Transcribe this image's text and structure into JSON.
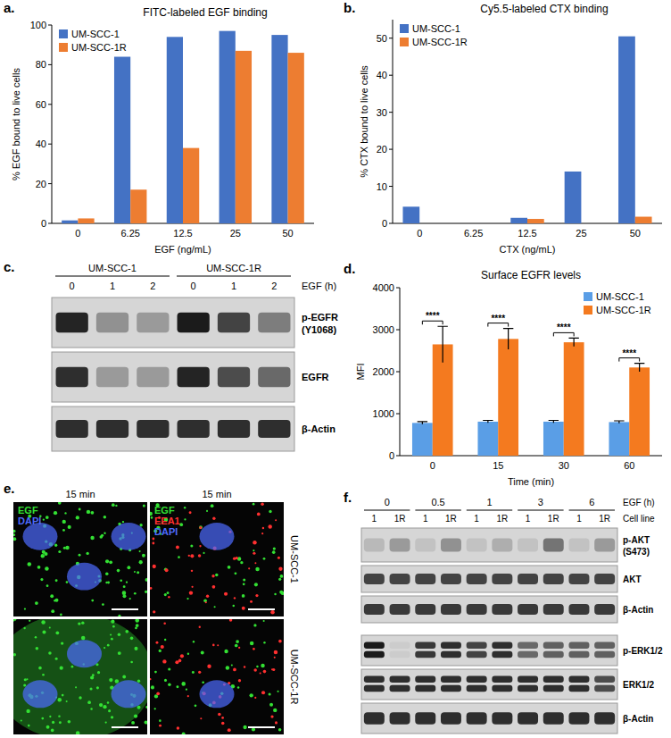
{
  "chart_data": [
    {
      "type": "bar",
      "panel": "a.",
      "title": "FITC-labeled EGF binding",
      "x_label": "EGF (ng/mL)",
      "y_label": "% EGF bound to live cells",
      "categories": [
        "0",
        "6.25",
        "12.5",
        "25",
        "50"
      ],
      "series": [
        {
          "name": "UM-SCC-1",
          "color": "#4472c4",
          "values": [
            1.5,
            84,
            94,
            97,
            95
          ]
        },
        {
          "name": "UM-SCC-1R",
          "color": "#ed7d31",
          "values": [
            2.5,
            17,
            38,
            87,
            86
          ]
        }
      ],
      "ylim": [
        0,
        100
      ],
      "yticks": [
        0,
        20,
        40,
        60,
        80,
        100
      ],
      "grid": false,
      "legend": "upper left"
    },
    {
      "type": "bar",
      "panel": "b.",
      "title": "Cy5.5-labeled CTX binding",
      "x_label": "CTX (ng/mL)",
      "y_label": "% CTX bound to live cells",
      "categories": [
        "0",
        "6.25",
        "12.5",
        "25",
        "50"
      ],
      "series": [
        {
          "name": "UM-SCC-1",
          "color": "#4472c4",
          "values": [
            4.5,
            0,
            1.5,
            14,
            50.5
          ]
        },
        {
          "name": "UM-SCC-1R",
          "color": "#ed7d31",
          "values": [
            0,
            0,
            1.2,
            0,
            1.8
          ]
        }
      ],
      "ylim": [
        0,
        55
      ],
      "yticks": [
        0,
        10,
        20,
        30,
        40,
        50
      ],
      "grid": false,
      "legend": "upper left"
    },
    {
      "type": "bar",
      "panel": "d.",
      "title": "Surface EGFR levels",
      "x_label": "Time (min)",
      "y_label": "MFI",
      "categories": [
        "0",
        "15",
        "30",
        "60"
      ],
      "series": [
        {
          "name": "UM-SCC-1",
          "color": "#5a9ee6",
          "values": [
            780,
            810,
            810,
            800
          ],
          "errors": [
            30,
            30,
            30,
            30
          ]
        },
        {
          "name": "UM-SCC-1R",
          "color": "#f47a1f",
          "values": [
            2650,
            2780,
            2700,
            2100
          ],
          "errors": [
            430,
            250,
            100,
            100
          ]
        }
      ],
      "annotations": [
        "****",
        "****",
        "****",
        "****"
      ],
      "ylim": [
        0,
        4000
      ],
      "yticks": [
        0,
        1000,
        2000,
        3000,
        4000
      ],
      "grid": false,
      "legend": "upper right"
    }
  ],
  "blot_c": {
    "panel": "c.",
    "groups": [
      "UM-SCC-1",
      "UM-SCC-1R"
    ],
    "lanes": [
      "0",
      "1",
      "2",
      "0",
      "1",
      "2"
    ],
    "lanes_label": "EGF (h)",
    "rows": [
      {
        "label": "p-EGFR",
        "sublabel": "(Y1068)",
        "intensity": [
          0.9,
          0.35,
          0.3,
          0.95,
          0.75,
          0.45
        ]
      },
      {
        "label": "EGFR",
        "intensity": [
          0.85,
          0.3,
          0.3,
          0.9,
          0.7,
          0.55
        ]
      },
      {
        "label": "β-Actin",
        "intensity": [
          0.85,
          0.85,
          0.85,
          0.85,
          0.85,
          0.85
        ]
      }
    ]
  },
  "images_e": {
    "panel": "e.",
    "times": [
      "15 min",
      "15 min"
    ],
    "rows": [
      "UM-SCC-1",
      "UM-SCC-1R"
    ],
    "channels": [
      [
        {
          "name": "EGF",
          "color": "#33e033"
        },
        {
          "name": "DAPI",
          "color": "#4d6bff"
        }
      ],
      [
        {
          "name": "EGF",
          "color": "#33e033"
        },
        {
          "name": "EEA1",
          "color": "#ff3030"
        },
        {
          "name": "DAPI",
          "color": "#4d6bff"
        }
      ]
    ]
  },
  "blot_f": {
    "panel": "f.",
    "times": [
      "0",
      "0.5",
      "1",
      "3",
      "6"
    ],
    "times_label": "EGF (h)",
    "cell_lines": [
      "1",
      "1R",
      "1",
      "1R",
      "1",
      "1R",
      "1",
      "1R",
      "1",
      "1R"
    ],
    "cell_lines_label": "Cell line",
    "rows": [
      {
        "label": "p-AKT",
        "sublabel": "(S473)",
        "intensity": [
          0.15,
          0.3,
          0.1,
          0.35,
          0.1,
          0.2,
          0.1,
          0.5,
          0.1,
          0.3
        ]
      },
      {
        "label": "AKT",
        "intensity": [
          0.75,
          0.75,
          0.75,
          0.75,
          0.75,
          0.75,
          0.75,
          0.75,
          0.75,
          0.75
        ]
      },
      {
        "label": "β-Actin",
        "intensity": [
          0.8,
          0.8,
          0.8,
          0.8,
          0.8,
          0.8,
          0.8,
          0.8,
          0.8,
          0.8
        ]
      },
      {
        "label": "p-ERK1/2",
        "doublet": true,
        "intensity": [
          0.95,
          0.05,
          0.8,
          0.85,
          0.75,
          0.85,
          0.55,
          0.6,
          0.6,
          0.6
        ]
      },
      {
        "label": "ERK1/2",
        "doublet": true,
        "intensity": [
          0.85,
          0.85,
          0.85,
          0.85,
          0.85,
          0.85,
          0.85,
          0.85,
          0.85,
          0.7
        ]
      },
      {
        "label": "β-Actin",
        "intensity": [
          0.85,
          0.85,
          0.85,
          0.85,
          0.85,
          0.85,
          0.85,
          0.85,
          0.85,
          0.85
        ]
      }
    ]
  }
}
